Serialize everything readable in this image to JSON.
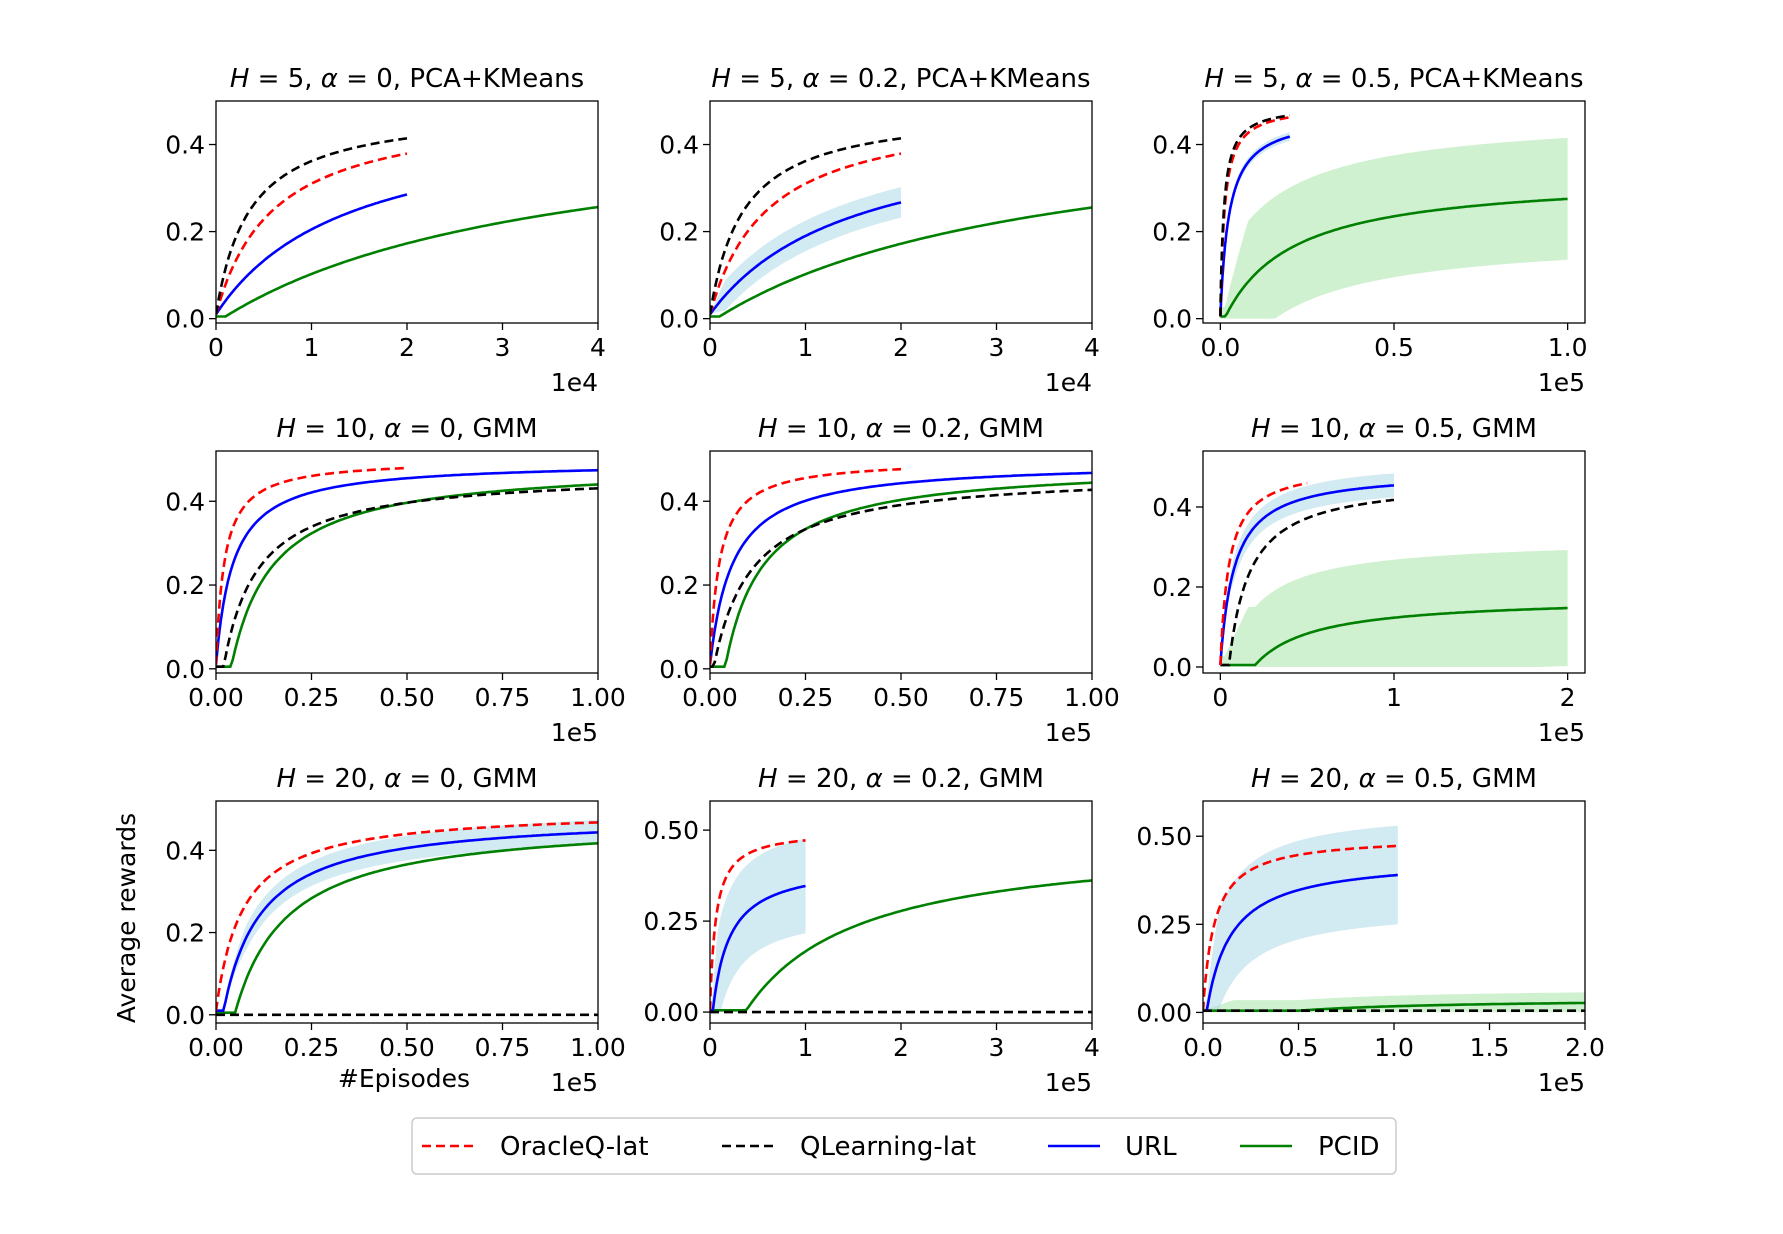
{
  "figure": {
    "ylabel": "Average rewards",
    "xlabel": "#Episodes",
    "legend": [
      {
        "label": "OracleQ-lat",
        "color": "#ff0000",
        "dash": "dashed"
      },
      {
        "label": "QLearning-lat",
        "color": "#000000",
        "dash": "dashed"
      },
      {
        "label": "URL",
        "color": "#0000ff",
        "dash": "solid"
      },
      {
        "label": "PCID",
        "color": "#008000",
        "dash": "solid"
      }
    ]
  },
  "chart_data": [
    {
      "type": "line",
      "title": "H = 5, α = 0, PCA+KMeans",
      "title_H": "5",
      "title_alpha": "0",
      "title_method": "PCA+KMeans",
      "xlim": [
        0,
        4
      ],
      "ylim": [
        -0.01,
        0.5
      ],
      "xticks": [
        "0",
        "1",
        "2",
        "3",
        "4"
      ],
      "xtick_values": [
        0,
        1,
        2,
        3,
        4
      ],
      "yticks": [
        "0.0",
        "0.2",
        "0.4"
      ],
      "ytick_values": [
        0,
        0.2,
        0.4
      ],
      "xscale_label": "1e4",
      "series": [
        {
          "name": "PCID",
          "k": 3.5,
          "x0": 0,
          "x1": 4,
          "y0": 0.005,
          "ymax": 0.482,
          "delay": 0.1,
          "shade": 0.003
        },
        {
          "name": "URL",
          "k": 1.4,
          "x0": 0,
          "x1": 2,
          "y0": 0.01,
          "ymax": 0.478,
          "delay": 0,
          "shade": 0.004
        },
        {
          "name": "OracleQ-lat",
          "k": 0.6,
          "x0": 0,
          "x1": 2,
          "y0": 0.01,
          "ymax": 0.49,
          "delay": 0,
          "shade": 0
        },
        {
          "name": "QLearning-lat",
          "k": 0.35,
          "x0": 0,
          "x1": 2,
          "y0": 0.01,
          "ymax": 0.485,
          "delay": 0,
          "shade": 0
        }
      ]
    },
    {
      "type": "line",
      "title": "H = 5, α = 0.2, PCA+KMeans",
      "title_H": "5",
      "title_alpha": "0.2",
      "title_method": "PCA+KMeans",
      "xlim": [
        0,
        4
      ],
      "ylim": [
        -0.01,
        0.5
      ],
      "xticks": [
        "0",
        "1",
        "2",
        "3",
        "4"
      ],
      "xtick_values": [
        0,
        1,
        2,
        3,
        4
      ],
      "yticks": [
        "0.0",
        "0.2",
        "0.4"
      ],
      "ytick_values": [
        0,
        0.2,
        0.4
      ],
      "xscale_label": "1e4",
      "series": [
        {
          "name": "PCID",
          "k": 3.5,
          "x0": 0,
          "x1": 4,
          "y0": 0.005,
          "ymax": 0.48,
          "delay": 0.1,
          "shade": 0.003
        },
        {
          "name": "URL",
          "k": 1.5,
          "x0": 0,
          "x1": 2,
          "y0": 0.01,
          "ymax": 0.46,
          "delay": 0,
          "shade": 0.035
        },
        {
          "name": "OracleQ-lat",
          "k": 0.6,
          "x0": 0,
          "x1": 2,
          "y0": 0.01,
          "ymax": 0.49,
          "delay": 0,
          "shade": 0
        },
        {
          "name": "QLearning-lat",
          "k": 0.35,
          "x0": 0,
          "x1": 2,
          "y0": 0.01,
          "ymax": 0.485,
          "delay": 0,
          "shade": 0
        }
      ]
    },
    {
      "type": "line",
      "title": "H = 5, α = 0.5, PCA+KMeans",
      "title_H": "5",
      "title_alpha": "0.5",
      "title_method": "PCA+KMeans",
      "xlim": [
        -0.05,
        1.05
      ],
      "ylim": [
        -0.01,
        0.5
      ],
      "xticks": [
        "0.0",
        "0.5",
        "1.0"
      ],
      "xtick_values": [
        0,
        0.5,
        1.0
      ],
      "yticks": [
        "0.0",
        "0.2",
        "0.4"
      ],
      "ytick_values": [
        0,
        0.2,
        0.4
      ],
      "xscale_label": "1e5",
      "series": [
        {
          "name": "PCID",
          "k": 0.2,
          "x0": 0,
          "x1": 1.0,
          "y0": 0.005,
          "ymax": 0.33,
          "delay": 0.015,
          "shade": 0.14
        },
        {
          "name": "URL",
          "k": 0.025,
          "x0": 0,
          "x1": 0.2,
          "y0": 0.005,
          "ymax": 0.47,
          "delay": 0,
          "shade": 0.01
        },
        {
          "name": "OracleQ-lat",
          "k": 0.012,
          "x0": 0,
          "x1": 0.2,
          "y0": 0.005,
          "ymax": 0.49,
          "delay": 0,
          "shade": 0
        },
        {
          "name": "QLearning-lat",
          "k": 0.01,
          "x0": 0,
          "x1": 0.2,
          "y0": 0.005,
          "ymax": 0.49,
          "delay": 0,
          "shade": 0
        }
      ]
    },
    {
      "type": "line",
      "title": "H = 10, α = 0, GMM",
      "title_H": "10",
      "title_alpha": "0",
      "title_method": "GMM",
      "xlim": [
        0,
        1.0
      ],
      "ylim": [
        -0.01,
        0.52
      ],
      "xticks": [
        "0.00",
        "0.25",
        "0.50",
        "0.75",
        "1.00"
      ],
      "xtick_values": [
        0,
        0.25,
        0.5,
        0.75,
        1.0
      ],
      "yticks": [
        "0.0",
        "0.2",
        "0.4"
      ],
      "ytick_values": [
        0,
        0.2,
        0.4
      ],
      "xscale_label": "1e5",
      "series": [
        {
          "name": "PCID",
          "k": 0.11,
          "x0": 0,
          "x1": 1.0,
          "y0": 0.005,
          "ymax": 0.49,
          "delay": 0.04,
          "shade": 0.004
        },
        {
          "name": "QLearning-lat",
          "k": 0.09,
          "x0": 0,
          "x1": 1.0,
          "y0": 0.005,
          "ymax": 0.47,
          "delay": 0.02,
          "shade": 0
        },
        {
          "name": "URL",
          "k": 0.045,
          "x0": 0,
          "x1": 1.0,
          "y0": 0.01,
          "ymax": 0.495,
          "delay": 0,
          "shade": 0.004
        },
        {
          "name": "OracleQ-lat",
          "k": 0.022,
          "x0": 0,
          "x1": 0.5,
          "y0": 0.01,
          "ymax": 0.5,
          "delay": 0,
          "shade": 0
        }
      ]
    },
    {
      "type": "line",
      "title": "H = 10, α = 0.2, GMM",
      "title_H": "10",
      "title_alpha": "0.2",
      "title_method": "GMM",
      "xlim": [
        0,
        1.0
      ],
      "ylim": [
        -0.01,
        0.52
      ],
      "xticks": [
        "0.00",
        "0.25",
        "0.50",
        "0.75",
        "1.00"
      ],
      "xtick_values": [
        0,
        0.25,
        0.5,
        0.75,
        1.0
      ],
      "yticks": [
        "0.0",
        "0.2",
        "0.4"
      ],
      "ytick_values": [
        0,
        0.2,
        0.4
      ],
      "xscale_label": "1e5",
      "series": [
        {
          "name": "PCID",
          "k": 0.1,
          "x0": 0,
          "x1": 1.0,
          "y0": 0.005,
          "ymax": 0.49,
          "delay": 0.04,
          "shade": 0.004
        },
        {
          "name": "QLearning-lat",
          "k": 0.1,
          "x0": 0,
          "x1": 1.0,
          "y0": 0.005,
          "ymax": 0.47,
          "delay": 0.01,
          "shade": 0
        },
        {
          "name": "URL",
          "k": 0.06,
          "x0": 0,
          "x1": 1.0,
          "y0": 0.01,
          "ymax": 0.495,
          "delay": 0,
          "shade": 0.004
        },
        {
          "name": "OracleQ-lat",
          "k": 0.025,
          "x0": 0,
          "x1": 0.5,
          "y0": 0.01,
          "ymax": 0.5,
          "delay": 0,
          "shade": 0
        }
      ]
    },
    {
      "type": "line",
      "title": "H = 10, α = 0.5, GMM",
      "title_H": "10",
      "title_alpha": "0.5",
      "title_method": "GMM",
      "xlim": [
        -0.1,
        2.1
      ],
      "ylim": [
        -0.015,
        0.54
      ],
      "xticks": [
        "0",
        "1",
        "2"
      ],
      "xtick_values": [
        0,
        1,
        2
      ],
      "yticks": [
        "0.0",
        "0.2",
        "0.4"
      ],
      "ytick_values": [
        0,
        0.2,
        0.4
      ],
      "xscale_label": "1e5",
      "series": [
        {
          "name": "PCID",
          "k": 0.35,
          "x0": 0,
          "x1": 2.0,
          "y0": 0.005,
          "ymax": 0.175,
          "delay": 0.2,
          "shade": 0.145
        },
        {
          "name": "QLearning-lat",
          "k": 0.12,
          "x0": 0,
          "x1": 1.0,
          "y0": 0.005,
          "ymax": 0.47,
          "delay": 0.05,
          "shade": 0
        },
        {
          "name": "URL",
          "k": 0.08,
          "x0": 0,
          "x1": 1.0,
          "y0": 0.005,
          "ymax": 0.49,
          "delay": 0.0,
          "shade": 0.03
        },
        {
          "name": "OracleQ-lat",
          "k": 0.05,
          "x0": 0,
          "x1": 0.5,
          "y0": 0.005,
          "ymax": 0.505,
          "delay": 0,
          "shade": 0
        }
      ]
    },
    {
      "type": "line",
      "title": "H = 20, α = 0, GMM",
      "title_H": "20",
      "title_alpha": "0",
      "title_method": "GMM",
      "xlim": [
        0,
        1.0
      ],
      "ylim": [
        -0.02,
        0.52
      ],
      "xticks": [
        "0.00",
        "0.25",
        "0.50",
        "0.75",
        "1.00"
      ],
      "xtick_values": [
        0,
        0.25,
        0.5,
        0.75,
        1.0
      ],
      "yticks": [
        "0.0",
        "0.2",
        "0.4"
      ],
      "ytick_values": [
        0,
        0.2,
        0.4
      ],
      "xscale_label": "1e5",
      "series": [
        {
          "name": "PCID",
          "k": 0.14,
          "x0": 0,
          "x1": 1.0,
          "y0": 0.005,
          "ymax": 0.478,
          "delay": 0.05,
          "shade": 0.004
        },
        {
          "name": "URL",
          "k": 0.1,
          "x0": 0,
          "x1": 1.0,
          "y0": 0.01,
          "ymax": 0.488,
          "delay": 0.02,
          "shade": 0.03
        },
        {
          "name": "OracleQ-lat",
          "k": 0.07,
          "x0": 0,
          "x1": 1.0,
          "y0": 0.01,
          "ymax": 0.5,
          "delay": 0,
          "shade": 0
        },
        {
          "name": "QLearning-lat",
          "k": 0.1,
          "x0": 0,
          "x1": 1.0,
          "y0": 0.0,
          "ymax": 0.0,
          "delay": 0,
          "shade": 0
        }
      ]
    },
    {
      "type": "line",
      "title": "H = 20, α = 0.2, GMM",
      "title_H": "20",
      "title_alpha": "0.2",
      "title_method": "GMM",
      "xlim": [
        0,
        4.0
      ],
      "ylim": [
        -0.03,
        0.58
      ],
      "xticks": [
        "0",
        "1",
        "2",
        "3",
        "4"
      ],
      "xtick_values": [
        0,
        1,
        2,
        3,
        4
      ],
      "yticks": [
        "0.00",
        "0.25",
        "0.50"
      ],
      "ytick_values": [
        0,
        0.25,
        0.5
      ],
      "xscale_label": "1e5",
      "series": [
        {
          "name": "PCID",
          "k": 1.2,
          "x0": 0,
          "x1": 4.0,
          "y0": 0.005,
          "ymax": 0.48,
          "delay": 0.38,
          "shade": 0.004
        },
        {
          "name": "URL",
          "k": 0.18,
          "x0": 0,
          "x1": 1.0,
          "y0": 0.005,
          "ymax": 0.41,
          "delay": 0.03,
          "shade": 0.13
        },
        {
          "name": "OracleQ-lat",
          "k": 0.06,
          "x0": 0,
          "x1": 1.0,
          "y0": 0.005,
          "ymax": 0.5,
          "delay": 0,
          "shade": 0
        },
        {
          "name": "QLearning-lat",
          "k": 0.1,
          "x0": 0,
          "x1": 4.0,
          "y0": 0.0,
          "ymax": 0.0,
          "delay": 0,
          "shade": 0
        }
      ]
    },
    {
      "type": "line",
      "title": "H = 20, α = 0.5, GMM",
      "title_H": "20",
      "title_alpha": "0.5",
      "title_method": "GMM",
      "xlim": [
        0,
        2.0
      ],
      "ylim": [
        -0.03,
        0.6
      ],
      "xticks": [
        "0.0",
        "0.5",
        "1.0",
        "1.5",
        "2.0"
      ],
      "xtick_values": [
        0,
        0.5,
        1.0,
        1.5,
        2.0
      ],
      "yticks": [
        "0.00",
        "0.25",
        "0.50"
      ],
      "ytick_values": [
        0,
        0.25,
        0.5
      ],
      "xscale_label": "1e5",
      "series": [
        {
          "name": "PCID",
          "k": 0.9,
          "x0": 0,
          "x1": 2.0,
          "y0": 0.005,
          "ymax": 0.04,
          "delay": 0.5,
          "shade": 0.03
        },
        {
          "name": "URL",
          "k": 0.13,
          "x0": 0,
          "x1": 1.02,
          "y0": 0.005,
          "ymax": 0.44,
          "delay": 0.02,
          "shade": 0.14
        },
        {
          "name": "OracleQ-lat",
          "k": 0.06,
          "x0": 0,
          "x1": 1.02,
          "y0": 0.005,
          "ymax": 0.5,
          "delay": 0,
          "shade": 0
        },
        {
          "name": "QLearning-lat",
          "k": 0.1,
          "x0": 0,
          "x1": 2.0,
          "y0": 0.005,
          "ymax": 0.005,
          "delay": 0,
          "shade": 0
        }
      ]
    }
  ]
}
